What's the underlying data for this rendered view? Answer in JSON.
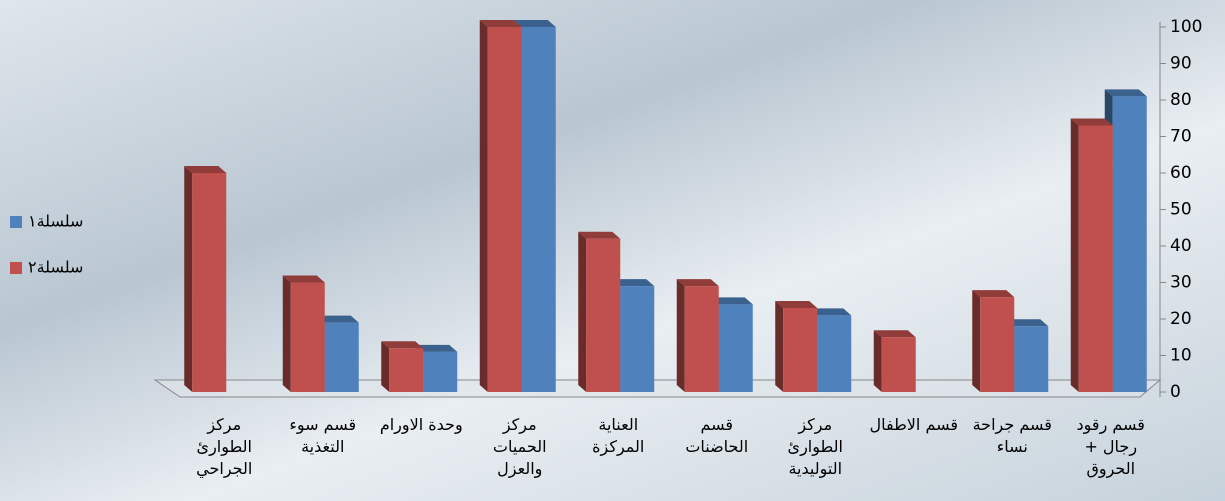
{
  "chart_data": {
    "type": "bar",
    "categories": [
      "قسم رقود رجال + الحروق",
      "قسم جراحة نساء",
      "قسم الاطفال",
      "مركز الطوارئ التوليدية",
      "قسم الحاضنات",
      "العناية المركزة",
      "مركز الحميات والعزل",
      "وحدة الاورام",
      "قسم سوء التغذية",
      "مركز الطوارئ الجراحي"
    ],
    "series": [
      {
        "name": "سلسلة١",
        "color": "#4f81bd",
        "values": [
          81,
          18,
          0,
          21,
          24,
          29,
          100,
          11,
          19,
          0
        ]
      },
      {
        "name": "سلسلة٢",
        "color": "#c0504d",
        "values": [
          73,
          26,
          15,
          23,
          29,
          42,
          100,
          12,
          30,
          60
        ]
      }
    ],
    "ylim": [
      0,
      100
    ],
    "yticks": [
      0,
      10,
      20,
      30,
      40,
      50,
      60,
      70,
      80,
      90,
      100
    ],
    "direction": "rtl",
    "legend": "left"
  }
}
